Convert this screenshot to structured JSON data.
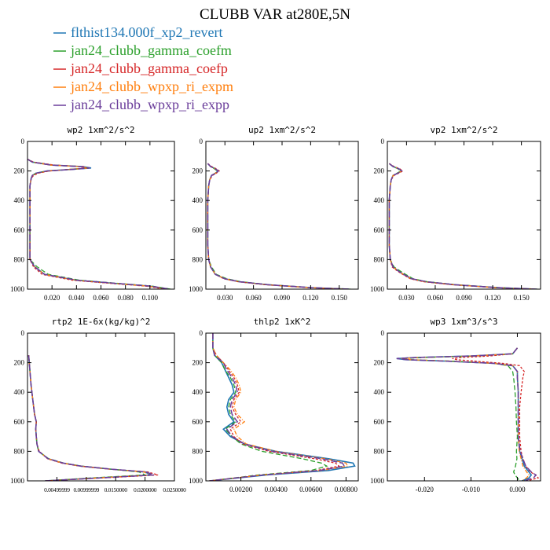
{
  "figure_title": "CLUBB VAR at280E,5N",
  "legend": [
    {
      "label": "flthist134.000f_xp2_revert",
      "color": "#1f77b4"
    },
    {
      "label": "jan24_clubb_gamma_coefm",
      "color": "#2ca02c"
    },
    {
      "label": "jan24_clubb_gamma_coefp",
      "color": "#d62728"
    },
    {
      "label": "jan24_clubb_wpxp_ri_expm",
      "color": "#ff7f0e"
    },
    {
      "label": "jan24_clubb_wpxp_ri_expp",
      "color": "#6a3d9a"
    }
  ],
  "chart_data": [
    {
      "type": "line",
      "title": "wp2  1xm^2/s^2",
      "xlim": [
        0,
        0.12
      ],
      "ylim": [
        1000,
        0
      ],
      "x_ticks": [
        "0.020",
        "0.040",
        "0.060",
        "0.080",
        "0.100"
      ],
      "x_tick_values": [
        0.02,
        0.04,
        0.06,
        0.08,
        0.1
      ],
      "y_ticks": [
        "0",
        "200",
        "400",
        "600",
        "800",
        "1000"
      ],
      "y_tick_values": [
        0,
        200,
        400,
        600,
        800,
        1000
      ],
      "y": [
        120,
        140,
        160,
        170,
        180,
        190,
        200,
        215,
        230,
        250,
        300,
        400,
        500,
        600,
        700,
        800,
        850,
        900,
        940,
        960,
        980,
        1000
      ],
      "series": [
        {
          "values": [
            0.0,
            0.004,
            0.02,
            0.045,
            0.052,
            0.035,
            0.016,
            0.007,
            0.004,
            0.003,
            0.002,
            0.002,
            0.002,
            0.002,
            0.002,
            0.002,
            0.006,
            0.014,
            0.04,
            0.07,
            0.1,
            0.115
          ]
        },
        {
          "values": [
            0.0,
            0.004,
            0.019,
            0.043,
            0.05,
            0.034,
            0.016,
            0.007,
            0.004,
            0.003,
            0.002,
            0.002,
            0.002,
            0.002,
            0.002,
            0.002,
            0.008,
            0.017,
            0.043,
            0.073,
            0.102,
            0.117
          ]
        },
        {
          "values": [
            0.0,
            0.005,
            0.022,
            0.046,
            0.048,
            0.033,
            0.018,
            0.009,
            0.005,
            0.003,
            0.002,
            0.002,
            0.002,
            0.002,
            0.002,
            0.002,
            0.005,
            0.012,
            0.037,
            0.067,
            0.097,
            0.112
          ]
        },
        {
          "values": [
            0.0,
            0.004,
            0.018,
            0.042,
            0.05,
            0.035,
            0.017,
            0.008,
            0.004,
            0.003,
            0.002,
            0.002,
            0.002,
            0.002,
            0.002,
            0.002,
            0.006,
            0.014,
            0.04,
            0.069,
            0.099,
            0.114
          ]
        },
        {
          "values": [
            0.0,
            0.004,
            0.019,
            0.043,
            0.051,
            0.036,
            0.016,
            0.007,
            0.004,
            0.003,
            0.002,
            0.002,
            0.002,
            0.002,
            0.002,
            0.002,
            0.006,
            0.014,
            0.041,
            0.071,
            0.101,
            0.116
          ]
        }
      ]
    },
    {
      "type": "line",
      "title": "up2  1xm^2/s^2",
      "xlim": [
        0.01,
        0.17
      ],
      "ylim": [
        1000,
        0
      ],
      "x_ticks": [
        "0.030",
        "0.060",
        "0.090",
        "0.120",
        "0.150"
      ],
      "x_tick_values": [
        0.03,
        0.06,
        0.09,
        0.12,
        0.15
      ],
      "y_ticks": [
        "0",
        "200",
        "400",
        "600",
        "800",
        "1000"
      ],
      "y_tick_values": [
        0,
        200,
        400,
        600,
        800,
        1000
      ],
      "y": [
        150,
        170,
        185,
        200,
        215,
        230,
        260,
        300,
        400,
        500,
        600,
        700,
        800,
        850,
        900,
        930,
        950,
        970,
        990,
        1000
      ],
      "series": [
        {
          "values": [
            0.012,
            0.015,
            0.02,
            0.023,
            0.02,
            0.016,
            0.014,
            0.013,
            0.012,
            0.012,
            0.012,
            0.012,
            0.013,
            0.015,
            0.02,
            0.03,
            0.045,
            0.075,
            0.12,
            0.16
          ]
        },
        {
          "values": [
            0.012,
            0.015,
            0.019,
            0.022,
            0.02,
            0.016,
            0.014,
            0.013,
            0.012,
            0.012,
            0.012,
            0.012,
            0.013,
            0.016,
            0.021,
            0.032,
            0.047,
            0.077,
            0.122,
            0.162
          ]
        },
        {
          "values": [
            0.012,
            0.016,
            0.021,
            0.024,
            0.021,
            0.017,
            0.014,
            0.013,
            0.012,
            0.012,
            0.012,
            0.012,
            0.013,
            0.015,
            0.02,
            0.029,
            0.044,
            0.073,
            0.118,
            0.158
          ]
        },
        {
          "values": [
            0.012,
            0.015,
            0.02,
            0.023,
            0.02,
            0.016,
            0.014,
            0.013,
            0.012,
            0.012,
            0.012,
            0.012,
            0.013,
            0.015,
            0.02,
            0.03,
            0.045,
            0.074,
            0.119,
            0.159
          ]
        },
        {
          "values": [
            0.012,
            0.015,
            0.02,
            0.023,
            0.021,
            0.016,
            0.014,
            0.013,
            0.012,
            0.012,
            0.012,
            0.012,
            0.013,
            0.015,
            0.02,
            0.03,
            0.046,
            0.076,
            0.121,
            0.161
          ]
        }
      ]
    },
    {
      "type": "line",
      "title": "vp2  1xm^2/s^2",
      "xlim": [
        0.01,
        0.17
      ],
      "ylim": [
        1000,
        0
      ],
      "x_ticks": [
        "0.030",
        "0.060",
        "0.090",
        "0.120",
        "0.150"
      ],
      "x_tick_values": [
        0.03,
        0.06,
        0.09,
        0.12,
        0.15
      ],
      "y_ticks": [
        "0",
        "200",
        "400",
        "600",
        "800",
        "1000"
      ],
      "y_tick_values": [
        0,
        200,
        400,
        600,
        800,
        1000
      ],
      "y": [
        150,
        170,
        185,
        200,
        215,
        230,
        260,
        300,
        400,
        500,
        600,
        700,
        800,
        850,
        880,
        900,
        930,
        950,
        970,
        990,
        1000
      ],
      "series": [
        {
          "values": [
            0.012,
            0.016,
            0.022,
            0.025,
            0.021,
            0.016,
            0.014,
            0.013,
            0.012,
            0.012,
            0.012,
            0.012,
            0.013,
            0.016,
            0.022,
            0.027,
            0.035,
            0.05,
            0.08,
            0.125,
            0.165
          ]
        },
        {
          "values": [
            0.012,
            0.016,
            0.021,
            0.024,
            0.02,
            0.016,
            0.014,
            0.013,
            0.012,
            0.012,
            0.012,
            0.012,
            0.013,
            0.017,
            0.024,
            0.029,
            0.037,
            0.052,
            0.082,
            0.127,
            0.167
          ]
        },
        {
          "values": [
            0.012,
            0.017,
            0.023,
            0.026,
            0.022,
            0.017,
            0.014,
            0.013,
            0.012,
            0.012,
            0.012,
            0.012,
            0.013,
            0.015,
            0.021,
            0.026,
            0.034,
            0.048,
            0.078,
            0.122,
            0.162
          ]
        },
        {
          "values": [
            0.012,
            0.016,
            0.022,
            0.025,
            0.021,
            0.016,
            0.014,
            0.013,
            0.012,
            0.012,
            0.012,
            0.012,
            0.013,
            0.016,
            0.022,
            0.027,
            0.035,
            0.049,
            0.079,
            0.124,
            0.164
          ]
        },
        {
          "values": [
            0.012,
            0.016,
            0.022,
            0.025,
            0.021,
            0.016,
            0.014,
            0.013,
            0.012,
            0.012,
            0.012,
            0.012,
            0.013,
            0.016,
            0.022,
            0.027,
            0.036,
            0.051,
            0.081,
            0.126,
            0.166
          ]
        }
      ]
    },
    {
      "type": "line",
      "title": "rtp2  1E-6x(kg/kg)^2",
      "xlim": [
        0,
        0.025
      ],
      "ylim": [
        1000,
        0
      ],
      "x_ticks": [
        "0.00499999",
        "0.00999999",
        "0.0150000",
        "0.0200000",
        "0.0250000"
      ],
      "x_tick_values": [
        0.005,
        0.01,
        0.015,
        0.02,
        0.025
      ],
      "y_ticks": [
        "0",
        "200",
        "400",
        "600",
        "800",
        "1000"
      ],
      "y_tick_values": [
        0,
        200,
        400,
        600,
        800,
        1000
      ],
      "y": [
        150,
        250,
        350,
        450,
        550,
        600,
        650,
        700,
        750,
        800,
        850,
        880,
        900,
        920,
        940,
        960,
        980,
        1000
      ],
      "series": [
        {
          "values": [
            0.0002,
            0.0004,
            0.0006,
            0.0009,
            0.0012,
            0.0015,
            0.0014,
            0.0015,
            0.0016,
            0.0019,
            0.0035,
            0.006,
            0.009,
            0.014,
            0.02,
            0.021,
            0.012,
            0.003
          ]
        },
        {
          "values": [
            0.0002,
            0.0004,
            0.0006,
            0.0009,
            0.0012,
            0.0015,
            0.0014,
            0.0015,
            0.0016,
            0.0019,
            0.0036,
            0.0062,
            0.0092,
            0.014,
            0.019,
            0.02,
            0.011,
            0.003
          ]
        },
        {
          "values": [
            0.0002,
            0.0004,
            0.0006,
            0.0009,
            0.0012,
            0.0015,
            0.0014,
            0.0015,
            0.0016,
            0.002,
            0.0034,
            0.0058,
            0.0088,
            0.0138,
            0.0205,
            0.0222,
            0.013,
            0.003
          ]
        },
        {
          "values": [
            0.0002,
            0.0004,
            0.0006,
            0.0009,
            0.0012,
            0.0015,
            0.0014,
            0.0015,
            0.0016,
            0.0019,
            0.0035,
            0.006,
            0.009,
            0.014,
            0.0198,
            0.021,
            0.012,
            0.003
          ]
        },
        {
          "values": [
            0.0002,
            0.0004,
            0.0006,
            0.0009,
            0.0012,
            0.0015,
            0.0014,
            0.0015,
            0.0016,
            0.0019,
            0.0035,
            0.0061,
            0.0091,
            0.0141,
            0.0202,
            0.0215,
            0.0125,
            0.003
          ]
        }
      ]
    },
    {
      "type": "line",
      "title": "thlp2  1xK^2",
      "xlim": [
        0,
        0.0087
      ],
      "ylim": [
        1000,
        0
      ],
      "x_ticks": [
        "0.00200",
        "0.00400",
        "0.00600",
        "0.00800"
      ],
      "x_tick_values": [
        0.002,
        0.004,
        0.006,
        0.008
      ],
      "y_ticks": [
        "0",
        "200",
        "400",
        "600",
        "800",
        "1000"
      ],
      "y_tick_values": [
        0,
        200,
        400,
        600,
        800,
        1000
      ],
      "y": [
        0,
        100,
        150,
        200,
        250,
        300,
        350,
        400,
        450,
        500,
        550,
        600,
        650,
        700,
        750,
        800,
        850,
        880,
        900,
        930,
        960,
        1000
      ],
      "series": [
        {
          "values": [
            0.0004,
            0.0004,
            0.0005,
            0.0009,
            0.0011,
            0.0013,
            0.0015,
            0.0016,
            0.0013,
            0.0012,
            0.0013,
            0.0016,
            0.001,
            0.0014,
            0.0022,
            0.004,
            0.007,
            0.0084,
            0.0085,
            0.007,
            0.0035,
            0.0002
          ]
        },
        {
          "values": [
            0.0004,
            0.0004,
            0.0005,
            0.0009,
            0.0011,
            0.0014,
            0.0016,
            0.0017,
            0.0014,
            0.0013,
            0.0014,
            0.0017,
            0.0011,
            0.0015,
            0.002,
            0.0032,
            0.0055,
            0.0066,
            0.0069,
            0.006,
            0.003,
            0.0002
          ]
        },
        {
          "values": [
            0.0004,
            0.0004,
            0.0006,
            0.001,
            0.0013,
            0.0016,
            0.0018,
            0.0019,
            0.0016,
            0.0015,
            0.0017,
            0.002,
            0.0014,
            0.0016,
            0.0021,
            0.0036,
            0.0062,
            0.0074,
            0.0076,
            0.0063,
            0.0032,
            0.0002
          ]
        },
        {
          "values": [
            0.0004,
            0.0004,
            0.0006,
            0.001,
            0.0014,
            0.0017,
            0.0019,
            0.002,
            0.0017,
            0.0016,
            0.0018,
            0.0022,
            0.0016,
            0.0018,
            0.0023,
            0.004,
            0.0068,
            0.008,
            0.0081,
            0.0066,
            0.0033,
            0.0002
          ]
        },
        {
          "values": [
            0.0004,
            0.0004,
            0.0005,
            0.001,
            0.0012,
            0.0015,
            0.0017,
            0.0018,
            0.0015,
            0.0014,
            0.0015,
            0.0018,
            0.0012,
            0.0015,
            0.0022,
            0.0038,
            0.0066,
            0.0078,
            0.0079,
            0.0065,
            0.0033,
            0.0002
          ]
        }
      ]
    },
    {
      "type": "line",
      "title": "wp3  1xm^3/s^3",
      "xlim": [
        -0.028,
        0.005
      ],
      "ylim": [
        1000,
        0
      ],
      "x_ticks": [
        "-0.020",
        "-0.010",
        "0.000"
      ],
      "x_tick_values": [
        -0.02,
        -0.01,
        0.0
      ],
      "y_ticks": [
        "0",
        "200",
        "400",
        "600",
        "800",
        "1000"
      ],
      "y_tick_values": [
        0,
        200,
        400,
        600,
        800,
        1000
      ],
      "y": [
        100,
        140,
        155,
        165,
        172,
        180,
        190,
        205,
        220,
        260,
        300,
        400,
        500,
        600,
        700,
        800,
        850,
        900,
        940,
        960,
        980,
        1000
      ],
      "series": [
        {
          "values": [
            0.0,
            -0.001,
            -0.01,
            -0.022,
            -0.026,
            -0.024,
            -0.015,
            -0.005,
            -0.001,
            0.0,
            0.0,
            0.0002,
            0.0002,
            0.0002,
            0.0002,
            0.0005,
            0.001,
            0.0015,
            0.0025,
            0.003,
            0.0025,
            0.001
          ]
        },
        {
          "values": [
            0.0,
            -0.001,
            -0.009,
            -0.02,
            -0.025,
            -0.023,
            -0.014,
            -0.005,
            -0.002,
            -0.001,
            -0.0008,
            -0.0005,
            -0.0003,
            -0.0002,
            0.0,
            -0.0002,
            -0.0001,
            -0.0004,
            -0.0008,
            -0.0005,
            0.0,
            0.0005
          ]
        },
        {
          "values": [
            0.0,
            -0.001,
            -0.006,
            -0.012,
            -0.014,
            -0.013,
            -0.009,
            -0.003,
            0.0005,
            0.0015,
            0.0012,
            0.0008,
            0.0005,
            0.0005,
            0.0005,
            0.0008,
            0.0012,
            0.0018,
            0.0028,
            0.004,
            0.0045,
            0.002
          ]
        },
        {
          "values": [
            0.0,
            -0.001,
            -0.01,
            -0.021,
            -0.025,
            -0.023,
            -0.014,
            -0.005,
            -0.001,
            0.0,
            0.0,
            0.0002,
            0.0002,
            0.0002,
            0.0002,
            0.0004,
            0.0008,
            0.0012,
            0.002,
            0.0025,
            0.002,
            0.001
          ]
        },
        {
          "values": [
            0.0,
            -0.001,
            -0.01,
            -0.022,
            -0.026,
            -0.024,
            -0.015,
            -0.005,
            -0.001,
            0.0,
            0.0,
            0.0002,
            0.0002,
            0.0002,
            0.0002,
            0.0006,
            0.0012,
            0.0018,
            0.003,
            0.004,
            0.0035,
            0.0015
          ]
        }
      ]
    }
  ]
}
